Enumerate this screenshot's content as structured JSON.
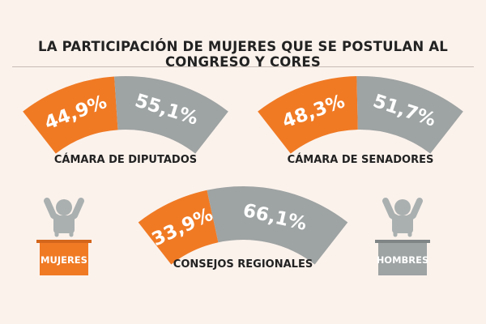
{
  "title": "LA PARTICIPACIÓN DE MUJERES QUE SE POSTULAN AL CONGRESO Y CORES",
  "colors": {
    "mujeres": "#f07a24",
    "hombres": "#9ea3a3",
    "background": "#fbf2ec"
  },
  "figures": {
    "mujeres_label": "MUJERES",
    "hombres_label": "HOMBRES"
  },
  "chart_data": [
    {
      "type": "pie",
      "title": "CÁMARA DE DIPUTADOS",
      "categories": [
        "MUJERES",
        "HOMBRES"
      ],
      "values": [
        44.9,
        55.1
      ],
      "value_labels": [
        "44,9%",
        "55,1%"
      ]
    },
    {
      "type": "pie",
      "title": "CÁMARA DE SENADORES",
      "categories": [
        "MUJERES",
        "HOMBRES"
      ],
      "values": [
        48.3,
        51.7
      ],
      "value_labels": [
        "48,3%",
        "51,7%"
      ]
    },
    {
      "type": "pie",
      "title": "CONSEJOS REGIONALES",
      "categories": [
        "MUJERES",
        "HOMBRES"
      ],
      "values": [
        33.9,
        66.1
      ],
      "value_labels": [
        "33,9%",
        "66,1%"
      ]
    }
  ]
}
